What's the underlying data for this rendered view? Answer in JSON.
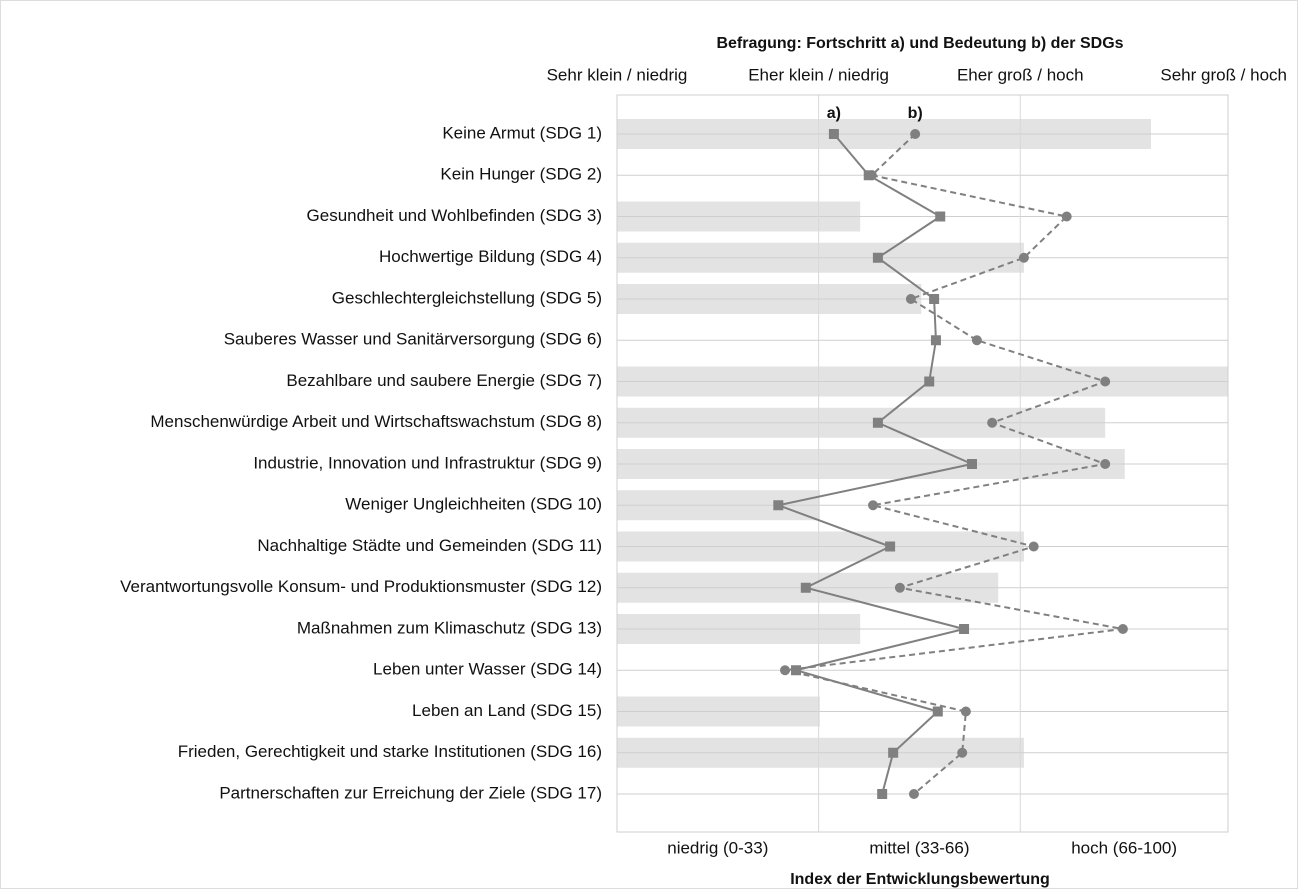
{
  "chart_data": {
    "type": "dot_line",
    "title": "Befragung: Fortschritt a) und Bedeutung b) der SDGs",
    "xlabel": "Index der Entwicklungsbewertung",
    "categories": [
      "Keine Armut (SDG 1)",
      "Kein Hunger (SDG 2)",
      "Gesundheit und Wohlbefinden (SDG 3)",
      "Hochwertige Bildung (SDG 4)",
      "Geschlechtergleichstellung (SDG 5)",
      "Sauberes Wasser und Sanitärversorgung (SDG 6)",
      "Bezahlbare und saubere Energie (SDG 7)",
      "Menschenwürdige Arbeit und Wirtschaftswachstum (SDG 8)",
      "Industrie, Innovation und Infrastruktur (SDG 9)",
      "Weniger Ungleichheiten (SDG 10)",
      "Nachhaltige Städte und Gemeinden (SDG 11)",
      "Verantwortungsvolle Konsum- und Produktionsmuster (SDG 12)",
      "Maßnahmen zum Klimaschutz (SDG 13)",
      "Leben unter Wasser (SDG 14)",
      "Leben an Land (SDG 15)",
      "Frieden, Gerechtigkeit und starke Institutionen (SDG 16)",
      "Partnerschaften zur Erreichung der Ziele (SDG 17)"
    ],
    "bars": {
      "color": "#e3e3e3",
      "values": [
        87.4,
        null,
        39.8,
        66.6,
        49.8,
        null,
        100,
        79.9,
        83.1,
        33.2,
        66.6,
        62.4,
        39.8,
        null,
        33.2,
        66.6,
        null
      ]
    },
    "series": [
      {
        "name": "a)",
        "color": "#808080",
        "marker": "square",
        "dashed": false,
        "values": [
          35.5,
          41.2,
          52.9,
          42.7,
          51.9,
          52.2,
          51.1,
          42.7,
          58.1,
          26.4,
          44.7,
          30.9,
          56.8,
          29.3,
          52.5,
          45.2,
          43.4
        ]
      },
      {
        "name": "b)",
        "color": "#808080",
        "marker": "circle",
        "dashed": true,
        "values": [
          48.8,
          41.7,
          73.6,
          66.6,
          48.1,
          58.9,
          79.9,
          61.4,
          79.9,
          41.9,
          68.2,
          46.3,
          82.8,
          27.5,
          57.1,
          56.5,
          48.6
        ]
      }
    ],
    "xlim": [
      0,
      100
    ],
    "xticks": [
      {
        "value": 0,
        "label": "Sehr klein / niedrig"
      },
      {
        "value": 33,
        "label": "Eher klein / niedrig"
      },
      {
        "value": 66,
        "label": "Eher groß / hoch"
      },
      {
        "value": 100,
        "label": "Sehr groß / hoch"
      }
    ],
    "bands": [
      {
        "label": "niedrig (0-33)",
        "from": 0,
        "to": 33
      },
      {
        "label": "mittel (33-66)",
        "from": 33,
        "to": 66
      },
      {
        "label": "hoch (66-100)",
        "from": 66,
        "to": 100
      }
    ]
  }
}
